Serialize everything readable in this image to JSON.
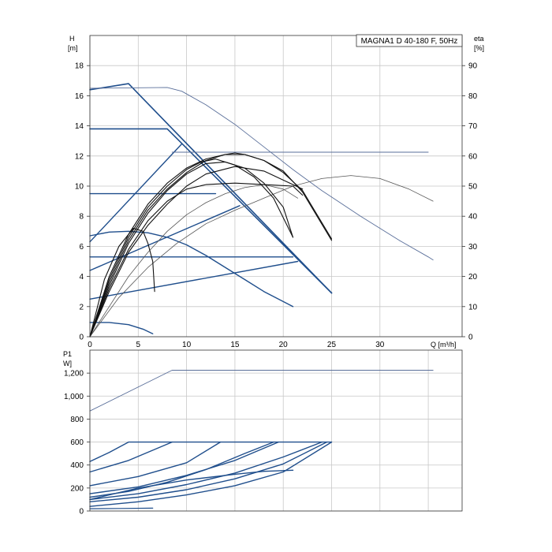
{
  "chart_data": [
    {
      "type": "line",
      "title": "MAGNA1 D 40-180 F, 50Hz",
      "xlabel": "Q [m³/h]",
      "ylabel": "H",
      "ylabel_unit": "[m]",
      "y2label": "eta",
      "y2label_unit": "[%]",
      "xlim": [
        0,
        38.5
      ],
      "ylim": [
        0,
        20
      ],
      "y2lim": [
        0,
        100
      ],
      "x_ticks": [
        0,
        5,
        10,
        15,
        20,
        25,
        30
      ],
      "y_ticks": [
        0,
        2,
        4,
        6,
        8,
        10,
        12,
        14,
        16,
        18
      ],
      "y2_ticks": [
        0,
        10,
        20,
        30,
        40,
        50,
        60,
        70,
        80,
        90
      ],
      "grid": true,
      "series": [
        {
          "color": "#1f4e8c",
          "width": 1.6,
          "points": [
            [
              0,
              16.4
            ],
            [
              4,
              16.8
            ],
            [
              25,
              2.9
            ]
          ]
        },
        {
          "color": "#1f4e8c",
          "width": 1.6,
          "points": [
            [
              0,
              13.8
            ],
            [
              8,
              13.8
            ],
            [
              25,
              2.9
            ]
          ]
        },
        {
          "color": "#1f4e8c",
          "width": 1.4,
          "points": [
            [
              0,
              6.3
            ],
            [
              9.5,
              12.8
            ]
          ]
        },
        {
          "color": "#1f4e8c",
          "width": 1.4,
          "points": [
            [
              0,
              9.5
            ],
            [
              13,
              9.5
            ]
          ]
        },
        {
          "color": "#1f4e8c",
          "width": 1.4,
          "points": [
            [
              0,
              4.4
            ],
            [
              15.5,
              8.7
            ]
          ]
        },
        {
          "color": "#1f4e8c",
          "width": 1.4,
          "points": [
            [
              0,
              5.3
            ],
            [
              21,
              5.3
            ]
          ]
        },
        {
          "color": "#1f4e8c",
          "width": 1.4,
          "points": [
            [
              0,
              2.5
            ],
            [
              21.5,
              5.0
            ]
          ]
        },
        {
          "color": "#1f4e8c",
          "width": 1.4,
          "points": [
            [
              0,
              6.7
            ],
            [
              2,
              6.95
            ],
            [
              4,
              7.0
            ],
            [
              6,
              6.9
            ],
            [
              8,
              6.6
            ],
            [
              10,
              6.1
            ],
            [
              12,
              5.4
            ],
            [
              14,
              4.6
            ],
            [
              16,
              3.8
            ],
            [
              18,
              3.0
            ],
            [
              21,
              2.0
            ]
          ]
        },
        {
          "color": "#1f4e8c",
          "width": 1.4,
          "points": [
            [
              0,
              0.95
            ],
            [
              2,
              0.95
            ],
            [
              4,
              0.8
            ],
            [
              5.5,
              0.5
            ],
            [
              6.5,
              0.2
            ]
          ]
        },
        {
          "color": "#5a6f9a",
          "width": 0.9,
          "points": [
            [
              0,
              16.5
            ],
            [
              8,
              16.55
            ],
            [
              9.5,
              16.3
            ],
            [
              12,
              15.4
            ],
            [
              15,
              14.1
            ],
            [
              18,
              12.6
            ],
            [
              21,
              11.1
            ],
            [
              24,
              9.7
            ],
            [
              28,
              8.0
            ],
            [
              32,
              6.4
            ],
            [
              35,
              5.3
            ],
            [
              35.5,
              5.1
            ]
          ]
        },
        {
          "color": "#5a6f9a",
          "width": 0.9,
          "points": [
            [
              8.5,
              12.25
            ],
            [
              10,
              12.25
            ],
            [
              12,
              12.25
            ],
            [
              14,
              12.25
            ],
            [
              18,
              12.25
            ],
            [
              20,
              12.25
            ],
            [
              21,
              12.25
            ],
            [
              22,
              12.25
            ],
            [
              23,
              12.25
            ],
            [
              24,
              12.25
            ],
            [
              25,
              12.25
            ],
            [
              26,
              12.25
            ],
            [
              27,
              12.25
            ],
            [
              28,
              12.25
            ],
            [
              29,
              12.25
            ],
            [
              30,
              12.25
            ],
            [
              31,
              12.25
            ],
            [
              32,
              12.25
            ],
            [
              33,
              12.25
            ],
            [
              34,
              12.25
            ],
            [
              35,
              12.25
            ]
          ]
        }
      ],
      "eta_series": [
        {
          "color": "#555555",
          "width": 0.8,
          "points": [
            [
              0,
              0
            ],
            [
              3,
              13
            ],
            [
              6,
              23
            ],
            [
              9,
              31
            ],
            [
              12,
              37.5
            ],
            [
              15,
              42
            ],
            [
              18,
              46
            ],
            [
              21,
              50
            ],
            [
              24,
              52.5
            ],
            [
              27,
              53.5
            ],
            [
              30,
              52.5
            ],
            [
              33,
              49
            ],
            [
              35.5,
              45
            ]
          ]
        },
        {
          "color": "#555555",
          "width": 0.8,
          "points": [
            [
              0,
              0
            ],
            [
              2,
              10
            ],
            [
              4,
              20
            ],
            [
              6,
              28
            ],
            [
              8,
              35
            ],
            [
              10,
              40.5
            ],
            [
              12,
              44.5
            ],
            [
              14,
              47.5
            ],
            [
              16,
              49.5
            ],
            [
              18,
              50.5
            ],
            [
              20,
              49
            ],
            [
              21.5,
              46
            ]
          ]
        },
        {
          "color": "#111111",
          "width": 1.1,
          "points": [
            [
              0,
              0
            ],
            [
              2,
              20
            ],
            [
              4,
              34
            ],
            [
              6,
              44
            ],
            [
              8,
              51
            ],
            [
              10,
              56
            ],
            [
              12,
              59
            ],
            [
              14,
              60.5
            ],
            [
              16,
              60.5
            ],
            [
              18,
              58.5
            ],
            [
              20,
              55
            ],
            [
              22,
              48
            ],
            [
              25,
              32
            ]
          ]
        },
        {
          "color": "#111111",
          "width": 1.1,
          "points": [
            [
              0,
              0
            ],
            [
              2,
              18
            ],
            [
              4,
              32
            ],
            [
              6,
              42
            ],
            [
              8,
              49
            ],
            [
              10,
              54.5
            ],
            [
              12,
              58.5
            ],
            [
              14,
              60.5
            ],
            [
              15,
              61
            ],
            [
              16,
              60.5
            ],
            [
              18,
              58.5
            ],
            [
              20,
              54.5
            ],
            [
              22,
              48.5
            ],
            [
              25,
              32.5
            ]
          ]
        },
        {
          "color": "#111111",
          "width": 1.1,
          "points": [
            [
              0,
              0
            ],
            [
              2,
              17
            ],
            [
              4,
              31
            ],
            [
              6,
              41
            ],
            [
              8,
              48.5
            ],
            [
              10,
              54
            ],
            [
              12,
              57.5
            ],
            [
              14,
              58
            ],
            [
              16,
              56
            ],
            [
              18,
              51
            ],
            [
              20,
              43
            ],
            [
              21,
              33
            ]
          ]
        },
        {
          "color": "#111111",
          "width": 1.1,
          "points": [
            [
              0,
              0
            ],
            [
              2,
              19
            ],
            [
              4,
              33
            ],
            [
              6,
              43
            ],
            [
              8,
              50
            ],
            [
              10,
              55.5
            ],
            [
              11.5,
              58
            ],
            [
              13,
              59
            ],
            [
              15,
              57
            ],
            [
              17,
              53
            ],
            [
              19,
              46
            ],
            [
              21,
              33
            ]
          ]
        },
        {
          "color": "#111111",
          "width": 1.1,
          "points": [
            [
              0,
              0
            ],
            [
              2,
              16
            ],
            [
              4,
              29
            ],
            [
              6,
              38.5
            ],
            [
              8,
              45
            ],
            [
              10,
              49
            ],
            [
              12,
              50.5
            ],
            [
              15,
              51
            ],
            [
              18,
              50.5
            ],
            [
              21,
              50
            ],
            [
              22,
              47
            ]
          ]
        },
        {
          "color": "#111111",
          "width": 1.1,
          "points": [
            [
              0,
              0
            ],
            [
              2,
              15
            ],
            [
              4,
              28
            ],
            [
              6,
              37
            ],
            [
              8,
              44
            ],
            [
              10,
              50
            ],
            [
              12,
              54
            ],
            [
              15,
              56.5
            ],
            [
              18,
              55
            ],
            [
              20,
              52
            ],
            [
              22,
              49
            ]
          ]
        },
        {
          "color": "#111111",
          "width": 1.1,
          "points": [
            [
              0,
              0
            ],
            [
              1.5,
              19
            ],
            [
              3,
              30
            ],
            [
              4.5,
              36
            ],
            [
              5.5,
              35
            ],
            [
              6,
              31
            ],
            [
              6.5,
              25
            ],
            [
              6.7,
              15
            ]
          ]
        }
      ]
    },
    {
      "type": "line",
      "xlabel": "",
      "ylabel": "P1",
      "ylabel_unit": "W]",
      "xlim": [
        0,
        38.5
      ],
      "ylim": [
        0,
        1400
      ],
      "y_ticks": [
        0,
        200,
        400,
        600,
        800,
        1000,
        1200
      ],
      "y_tick_labels": [
        "0",
        "200",
        "400",
        "600",
        "800",
        "1,000",
        "1,200"
      ],
      "grid": true,
      "series": [
        {
          "color": "#5a6f9a",
          "width": 0.9,
          "points": [
            [
              0,
              870
            ],
            [
              8.5,
              1225
            ],
            [
              35.5,
              1225
            ]
          ]
        },
        {
          "color": "#1f4e8c",
          "width": 1.4,
          "points": [
            [
              0,
              430
            ],
            [
              2,
              510
            ],
            [
              4,
              600
            ],
            [
              25,
              600
            ]
          ]
        },
        {
          "color": "#1f4e8c",
          "width": 1.4,
          "points": [
            [
              0,
              340
            ],
            [
              4,
              440
            ],
            [
              8.5,
              600
            ]
          ]
        },
        {
          "color": "#1f4e8c",
          "width": 1.4,
          "points": [
            [
              0,
              220
            ],
            [
              5,
              300
            ],
            [
              10,
              420
            ],
            [
              13.5,
              600
            ]
          ]
        },
        {
          "color": "#1f4e8c",
          "width": 1.4,
          "points": [
            [
              0,
              150
            ],
            [
              5,
              210
            ],
            [
              10,
              310
            ],
            [
              15,
              440
            ],
            [
              19.5,
              600
            ]
          ]
        },
        {
          "color": "#1f4e8c",
          "width": 1.4,
          "points": [
            [
              0,
              120
            ],
            [
              4,
              170
            ],
            [
              8,
              250
            ],
            [
              12,
              360
            ],
            [
              16,
              500
            ],
            [
              19,
              600
            ]
          ]
        },
        {
          "color": "#1f4e8c",
          "width": 1.4,
          "points": [
            [
              0,
              100
            ],
            [
              5,
              150
            ],
            [
              10,
              230
            ],
            [
              15,
              330
            ],
            [
              20,
              470
            ],
            [
              24,
              600
            ]
          ]
        },
        {
          "color": "#1f4e8c",
          "width": 1.4,
          "points": [
            [
              0,
              80
            ],
            [
              5,
              120
            ],
            [
              10,
              185
            ],
            [
              15,
              280
            ],
            [
              20,
              410
            ],
            [
              24.5,
              600
            ]
          ]
        },
        {
          "color": "#1f4e8c",
          "width": 1.4,
          "points": [
            [
              0,
              40
            ],
            [
              5,
              80
            ],
            [
              10,
              140
            ],
            [
              15,
              220
            ],
            [
              20,
              340
            ],
            [
              25,
              600
            ]
          ]
        },
        {
          "color": "#1f4e8c",
          "width": 1.4,
          "points": [
            [
              0,
              100
            ],
            [
              5,
              200
            ],
            [
              10,
              270
            ],
            [
              15,
              320
            ],
            [
              18,
              345
            ],
            [
              21,
              355
            ]
          ]
        },
        {
          "color": "#1f4e8c",
          "width": 1.2,
          "points": [
            [
              0,
              20
            ],
            [
              3,
              22
            ],
            [
              6.5,
              25
            ]
          ]
        }
      ]
    }
  ]
}
